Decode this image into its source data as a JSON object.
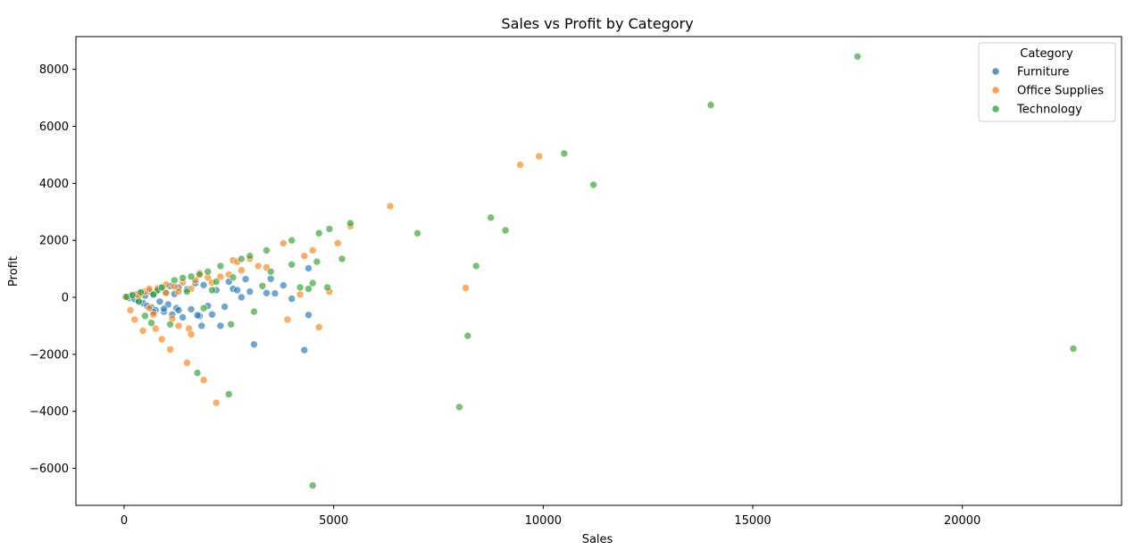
{
  "chart_data": {
    "type": "scatter",
    "title": "Sales vs Profit by Category",
    "xlabel": "Sales",
    "ylabel": "Profit",
    "xlim": [
      -1150,
      23800
    ],
    "ylim": [
      -7300,
      9150
    ],
    "xticks": [
      0,
      5000,
      10000,
      15000,
      20000
    ],
    "xtick_labels": [
      "0",
      "5000",
      "10000",
      "15000",
      "20000"
    ],
    "yticks": [
      -6000,
      -4000,
      -2000,
      0,
      2000,
      4000,
      6000,
      8000
    ],
    "ytick_labels": [
      "−6000",
      "−4000",
      "−2000",
      "0",
      "2000",
      "4000",
      "6000",
      "8000"
    ],
    "grid": false,
    "legend": {
      "title": "Category",
      "position": "top-right"
    },
    "series": [
      {
        "name": "Furniture",
        "color": "#1f77b4",
        "points": [
          [
            50,
            5
          ],
          [
            120,
            -20
          ],
          [
            180,
            40
          ],
          [
            250,
            -60
          ],
          [
            300,
            90
          ],
          [
            350,
            -120
          ],
          [
            400,
            150
          ],
          [
            450,
            -200
          ],
          [
            500,
            60
          ],
          [
            550,
            -300
          ],
          [
            600,
            220
          ],
          [
            650,
            -350
          ],
          [
            700,
            100
          ],
          [
            750,
            -450
          ],
          [
            800,
            250
          ],
          [
            850,
            -150
          ],
          [
            900,
            320
          ],
          [
            950,
            -500
          ],
          [
            1000,
            180
          ],
          [
            1050,
            -250
          ],
          [
            1100,
            400
          ],
          [
            1150,
            -600
          ],
          [
            1200,
            120
          ],
          [
            1250,
            -380
          ],
          [
            1300,
            350
          ],
          [
            1400,
            -700
          ],
          [
            1500,
            280
          ],
          [
            1600,
            -420
          ],
          [
            1700,
            500
          ],
          [
            1800,
            -650
          ],
          [
            1900,
            430
          ],
          [
            2000,
            -300
          ],
          [
            2100,
            -600
          ],
          [
            2200,
            250
          ],
          [
            2300,
            -1000
          ],
          [
            2400,
            -330
          ],
          [
            2500,
            550
          ],
          [
            2600,
            300
          ],
          [
            2700,
            250
          ],
          [
            2800,
            0
          ],
          [
            2900,
            640
          ],
          [
            3000,
            200
          ],
          [
            3100,
            -1650
          ],
          [
            3400,
            150
          ],
          [
            3500,
            650
          ],
          [
            3600,
            140
          ],
          [
            3800,
            420
          ],
          [
            4000,
            -50
          ],
          [
            4300,
            -1850
          ],
          [
            4400,
            -620
          ],
          [
            4400,
            1020
          ],
          [
            1850,
            -1000
          ],
          [
            1750,
            -630
          ],
          [
            1300,
            -450
          ],
          [
            700,
            -520
          ],
          [
            950,
            -400
          ]
        ]
      },
      {
        "name": "Office Supplies",
        "color": "#ff7f0e",
        "points": [
          [
            30,
            10
          ],
          [
            150,
            -450
          ],
          [
            250,
            -780
          ],
          [
            300,
            100
          ],
          [
            350,
            50
          ],
          [
            450,
            -1170
          ],
          [
            500,
            200
          ],
          [
            600,
            300
          ],
          [
            700,
            -600
          ],
          [
            750,
            -1100
          ],
          [
            800,
            320
          ],
          [
            900,
            -1470
          ],
          [
            1000,
            450
          ],
          [
            1100,
            -1830
          ],
          [
            1150,
            -750
          ],
          [
            1200,
            380
          ],
          [
            1300,
            -1000
          ],
          [
            1400,
            520
          ],
          [
            1500,
            -2300
          ],
          [
            1550,
            -1100
          ],
          [
            1600,
            -1300
          ],
          [
            1700,
            600
          ],
          [
            1800,
            850
          ],
          [
            1900,
            -2900
          ],
          [
            2000,
            700
          ],
          [
            2100,
            520
          ],
          [
            2200,
            -3700
          ],
          [
            2300,
            720
          ],
          [
            2500,
            800
          ],
          [
            2600,
            1300
          ],
          [
            2700,
            1250
          ],
          [
            2800,
            950
          ],
          [
            3000,
            1350
          ],
          [
            3200,
            1100
          ],
          [
            3400,
            1050
          ],
          [
            3800,
            1900
          ],
          [
            3900,
            -780
          ],
          [
            4200,
            100
          ],
          [
            4300,
            1450
          ],
          [
            4500,
            1650
          ],
          [
            4650,
            -1050
          ],
          [
            4900,
            200
          ],
          [
            5100,
            1900
          ],
          [
            5400,
            2500
          ],
          [
            6350,
            3200
          ],
          [
            8150,
            330
          ],
          [
            9450,
            4650
          ],
          [
            9900,
            4950
          ],
          [
            1600,
            300
          ],
          [
            1000,
            150
          ],
          [
            600,
            -380
          ],
          [
            1300,
            200
          ]
        ]
      },
      {
        "name": "Technology",
        "color": "#2ca02c",
        "points": [
          [
            60,
            20
          ],
          [
            200,
            80
          ],
          [
            350,
            -150
          ],
          [
            400,
            180
          ],
          [
            500,
            -650
          ],
          [
            650,
            -900
          ],
          [
            800,
            250
          ],
          [
            900,
            350
          ],
          [
            1100,
            -950
          ],
          [
            1200,
            600
          ],
          [
            1400,
            680
          ],
          [
            1600,
            730
          ],
          [
            1750,
            -2650
          ],
          [
            1800,
            800
          ],
          [
            1900,
            -380
          ],
          [
            2000,
            900
          ],
          [
            2200,
            550
          ],
          [
            2300,
            1100
          ],
          [
            2500,
            -3400
          ],
          [
            2550,
            -950
          ],
          [
            2600,
            700
          ],
          [
            2800,
            1350
          ],
          [
            3000,
            1450
          ],
          [
            3100,
            -500
          ],
          [
            3300,
            400
          ],
          [
            3400,
            1650
          ],
          [
            3500,
            900
          ],
          [
            4000,
            1150
          ],
          [
            4000,
            2000
          ],
          [
            4200,
            350
          ],
          [
            4400,
            300
          ],
          [
            4500,
            500
          ],
          [
            4500,
            -6600
          ],
          [
            4600,
            1250
          ],
          [
            4650,
            2250
          ],
          [
            4850,
            350
          ],
          [
            4900,
            2400
          ],
          [
            5200,
            1350
          ],
          [
            5400,
            2600
          ],
          [
            7000,
            2250
          ],
          [
            8000,
            -3850
          ],
          [
            8200,
            -1350
          ],
          [
            8400,
            1100
          ],
          [
            8750,
            2800
          ],
          [
            9100,
            2350
          ],
          [
            10500,
            5050
          ],
          [
            11200,
            3950
          ],
          [
            14000,
            6750
          ],
          [
            17500,
            8450
          ],
          [
            22650,
            -1800
          ],
          [
            1500,
            200
          ],
          [
            2100,
            250
          ],
          [
            700,
            100
          ]
        ]
      }
    ]
  }
}
